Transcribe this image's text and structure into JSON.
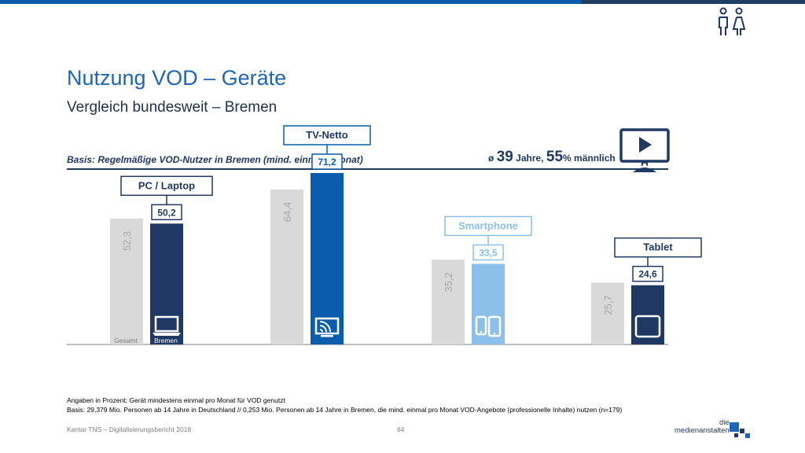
{
  "header": {
    "title": "Nutzung VOD – Geräte",
    "subtitle": "Vergleich bundesweit – Bremen"
  },
  "basis": {
    "text": "Basis: Regelmäßige VOD-Nutzer in Bremen (mind. einmal / Monat)",
    "avg_symbol": "ø",
    "age": "39",
    "age_unit": "Jahre,",
    "male_pct": "55",
    "male_suffix": "% männlich"
  },
  "chart_data": {
    "type": "bar",
    "categories": [
      "PC / Laptop",
      "TV-Netto",
      "Smartphone",
      "Tablet"
    ],
    "series": [
      {
        "name": "Gesamt",
        "values": [
          52.3,
          64.4,
          35.2,
          25.7
        ]
      },
      {
        "name": "Bremen",
        "values": [
          50.2,
          71.2,
          33.5,
          24.6
        ]
      }
    ],
    "value_labels": {
      "Gesamt": [
        "52,3",
        "64,4",
        "35,2",
        "25,7"
      ],
      "Bremen": [
        "50,2",
        "71,2",
        "33,5",
        "24,6"
      ]
    },
    "ylim": [
      0,
      100
    ],
    "grid": false,
    "colors": {
      "gesamt": "#d9d9d9",
      "bremen": [
        "#1f3864",
        "#0b5cad",
        "#8cc0ea",
        "#1f3864"
      ],
      "gesamt_label": "#a6a6a6"
    },
    "icons": [
      "laptop-icon",
      "tv-cast-icon",
      "phone-tablet-icon",
      "tablet-icon"
    ]
  },
  "footnote": {
    "line1": "Angaben in Prozent; Gerät mindestens einmal pro Monat für VOD genutzt",
    "line2": "Basis: 29,379 Mio. Personen ab 14 Jahre in Deutschland // 0,253 Mio. Personen ab 14 Jahre in Bremen, die mind. einmal pro Monat VOD-Angebote (professionelle Inhalte) nutzen (n=179)"
  },
  "footer": {
    "source": "Kantar TNS – Digitalisierungsbericht 2018",
    "page": "64",
    "logo_line1": "die",
    "logo_line2": "medienanstalten"
  }
}
